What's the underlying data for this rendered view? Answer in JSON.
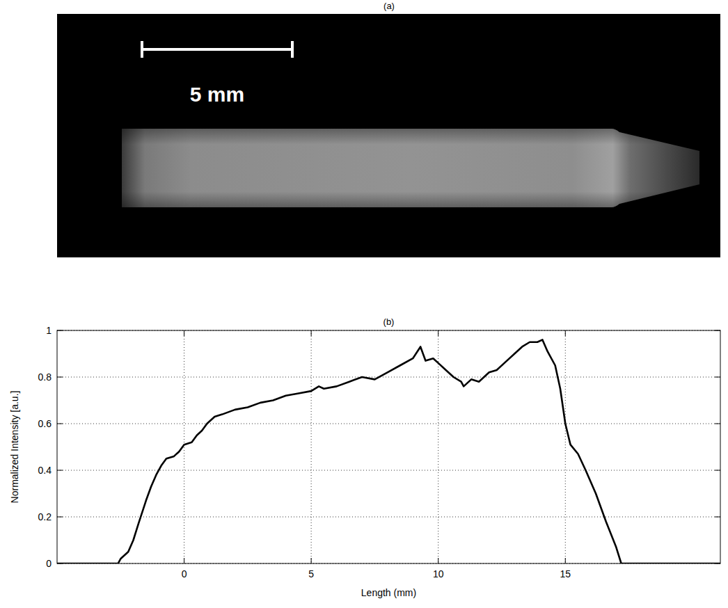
{
  "panel_a": {
    "label": "(a)",
    "scale_bar": "5 mm"
  },
  "chart_data": {
    "type": "line",
    "title": "(b)",
    "x_label": "Length (mm)",
    "y_label": "Normalized Intensity [a.u.]",
    "x": [
      -5,
      -2.6,
      -2.5,
      -2.2,
      -2,
      -1.8,
      -1.5,
      -1.3,
      -1.1,
      -0.9,
      -0.7,
      -0.4,
      -0.2,
      0,
      0.3,
      0.5,
      0.7,
      0.9,
      1.2,
      1.5,
      2,
      2.5,
      3,
      3.5,
      4,
      4.5,
      5,
      5.3,
      5.5,
      6,
      6.5,
      7,
      7.5,
      8,
      8.5,
      9,
      9.3,
      9.5,
      9.8,
      10,
      10.3,
      10.6,
      10.9,
      11,
      11.3,
      11.6,
      12,
      12.3,
      12.6,
      13,
      13.3,
      13.6,
      13.9,
      14.1,
      14.3,
      14.6,
      14.8,
      15,
      15.2,
      15.5,
      15.8,
      16.2,
      16.6,
      17,
      17.2,
      21.1
    ],
    "values": [
      0,
      0,
      0.02,
      0.05,
      0.1,
      0.17,
      0.27,
      0.33,
      0.38,
      0.42,
      0.45,
      0.46,
      0.48,
      0.51,
      0.52,
      0.55,
      0.57,
      0.6,
      0.63,
      0.64,
      0.66,
      0.67,
      0.69,
      0.7,
      0.72,
      0.73,
      0.74,
      0.76,
      0.75,
      0.76,
      0.78,
      0.8,
      0.79,
      0.82,
      0.85,
      0.88,
      0.93,
      0.87,
      0.88,
      0.86,
      0.83,
      0.8,
      0.78,
      0.76,
      0.79,
      0.78,
      0.82,
      0.83,
      0.86,
      0.9,
      0.93,
      0.95,
      0.95,
      0.96,
      0.91,
      0.85,
      0.75,
      0.6,
      0.51,
      0.47,
      0.4,
      0.3,
      0.18,
      0.07,
      0,
      0
    ],
    "color": "#000000",
    "xlim": [
      -5,
      21.1
    ],
    "xticks": [
      0,
      5,
      10,
      15
    ],
    "ylim": [
      0,
      1
    ],
    "yticks": [
      0,
      0.2,
      0.4,
      0.6,
      0.8,
      1
    ],
    "grid": true
  }
}
